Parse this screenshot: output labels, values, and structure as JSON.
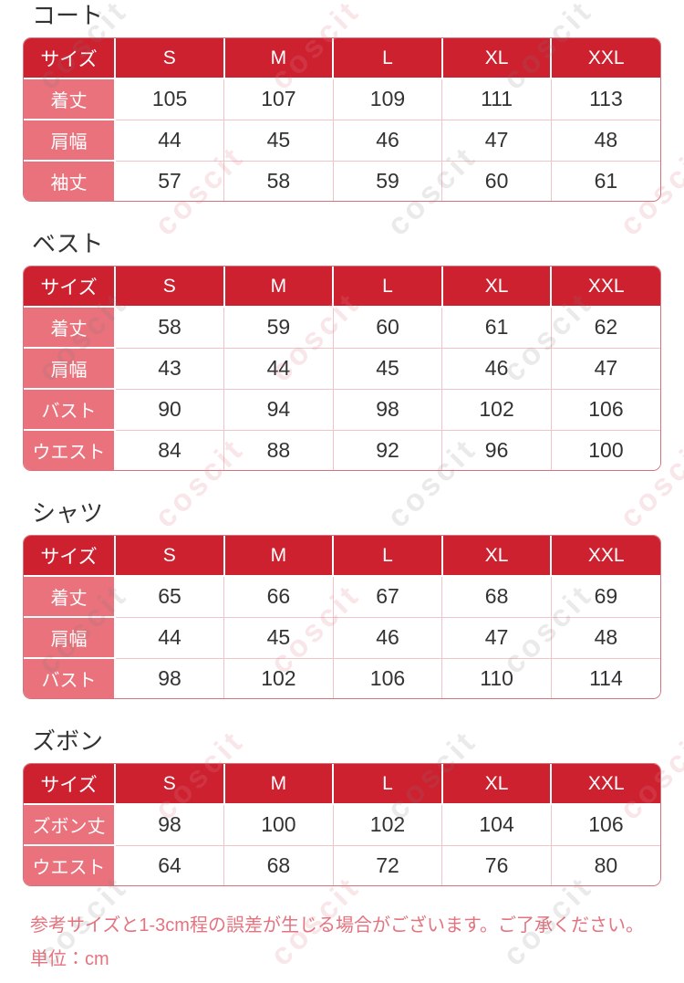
{
  "size_header": "サイズ",
  "sizes": [
    "S",
    "M",
    "L",
    "XL",
    "XXL"
  ],
  "tables": [
    {
      "title": "コート",
      "rows": [
        {
          "label": "着丈",
          "values": [
            "105",
            "107",
            "109",
            "111",
            "113"
          ]
        },
        {
          "label": "肩幅",
          "values": [
            "44",
            "45",
            "46",
            "47",
            "48"
          ]
        },
        {
          "label": "袖丈",
          "values": [
            "57",
            "58",
            "59",
            "60",
            "61"
          ]
        }
      ]
    },
    {
      "title": "ベスト",
      "rows": [
        {
          "label": "着丈",
          "values": [
            "58",
            "59",
            "60",
            "61",
            "62"
          ]
        },
        {
          "label": "肩幅",
          "values": [
            "43",
            "44",
            "45",
            "46",
            "47"
          ]
        },
        {
          "label": "バスト",
          "values": [
            "90",
            "94",
            "98",
            "102",
            "106"
          ]
        },
        {
          "label": "ウエスト",
          "values": [
            "84",
            "88",
            "92",
            "96",
            "100"
          ]
        }
      ]
    },
    {
      "title": "シャツ",
      "rows": [
        {
          "label": "着丈",
          "values": [
            "65",
            "66",
            "67",
            "68",
            "69"
          ]
        },
        {
          "label": "肩幅",
          "values": [
            "44",
            "45",
            "46",
            "47",
            "48"
          ]
        },
        {
          "label": "バスト",
          "values": [
            "98",
            "102",
            "106",
            "110",
            "114"
          ]
        }
      ]
    },
    {
      "title": "ズボン",
      "rows": [
        {
          "label": "ズボン丈",
          "values": [
            "98",
            "100",
            "102",
            "104",
            "106"
          ]
        },
        {
          "label": "ウエスト",
          "values": [
            "64",
            "68",
            "72",
            "76",
            "80"
          ]
        }
      ]
    }
  ],
  "notes": {
    "tolerance": "参考サイズと1-3cm程の誤差が生じる場合がございます。ご了承ください。",
    "unit": "単位：cm"
  },
  "watermark": {
    "text": "coscit"
  },
  "colors": {
    "header_bg": "#cd2130",
    "label_bg": "#e9727c",
    "header_text": "#ffffff",
    "cell_text": "#333333",
    "outer_border": "#d4737e",
    "inner_border": "#f2c4c8",
    "note_text": "#e4737f"
  }
}
